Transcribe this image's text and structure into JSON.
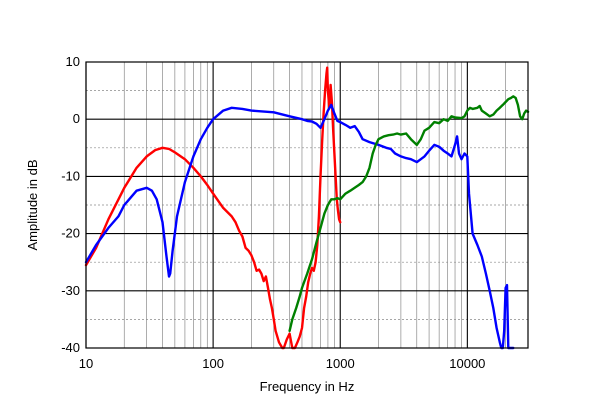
{
  "chart_data": {
    "type": "line",
    "title": "",
    "xlabel": "Frequency  in  Hz",
    "ylabel": "Amplitude  in  dB",
    "xscale": "log",
    "xlim": [
      10,
      30000
    ],
    "ylim": [
      -40,
      10
    ],
    "x_tick_labels": [
      "10",
      "100",
      "1000",
      "10000"
    ],
    "x_tick_values": [
      10,
      100,
      1000,
      10000
    ],
    "y_tick_labels": [
      "10",
      "0",
      "-10",
      "-20",
      "-30",
      "-40"
    ],
    "y_tick_values": [
      10,
      0,
      -10,
      -20,
      -30,
      -40
    ],
    "grid": true,
    "legend": "none",
    "series": [
      {
        "color": "#ff0000",
        "points": [
          [
            10,
            -25.5
          ],
          [
            12,
            -22.5
          ],
          [
            15,
            -17.5
          ],
          [
            20,
            -12
          ],
          [
            25,
            -8.5
          ],
          [
            30,
            -6.5
          ],
          [
            35,
            -5.4
          ],
          [
            40,
            -5
          ],
          [
            45,
            -5.2
          ],
          [
            50,
            -5.8
          ],
          [
            60,
            -7
          ],
          [
            70,
            -8.5
          ],
          [
            80,
            -10
          ],
          [
            90,
            -11.5
          ],
          [
            100,
            -13
          ],
          [
            120,
            -15.5
          ],
          [
            140,
            -17
          ],
          [
            150,
            -18
          ],
          [
            160,
            -19.5
          ],
          [
            170,
            -20.5
          ],
          [
            180,
            -22.5
          ],
          [
            190,
            -23
          ],
          [
            200,
            -23.8
          ],
          [
            210,
            -25
          ],
          [
            220,
            -26.5
          ],
          [
            230,
            -26.3
          ],
          [
            240,
            -27
          ],
          [
            250,
            -28.3
          ],
          [
            260,
            -27.5
          ],
          [
            270,
            -29.5
          ],
          [
            280,
            -31.5
          ],
          [
            290,
            -33
          ],
          [
            300,
            -35
          ],
          [
            310,
            -37
          ],
          [
            330,
            -39
          ],
          [
            350,
            -40
          ],
          [
            360,
            -40
          ],
          [
            380,
            -38.5
          ],
          [
            400,
            -37.5
          ],
          [
            420,
            -40
          ],
          [
            440,
            -40
          ],
          [
            460,
            -39
          ],
          [
            480,
            -38
          ],
          [
            500,
            -36.5
          ],
          [
            520,
            -33
          ],
          [
            540,
            -31
          ],
          [
            560,
            -28.5
          ],
          [
            580,
            -27
          ],
          [
            600,
            -26
          ],
          [
            620,
            -26.5
          ],
          [
            640,
            -25
          ],
          [
            660,
            -22
          ],
          [
            680,
            -17
          ],
          [
            700,
            -10
          ],
          [
            720,
            -4
          ],
          [
            740,
            1
          ],
          [
            760,
            5
          ],
          [
            780,
            8
          ],
          [
            790,
            9
          ],
          [
            800,
            5
          ],
          [
            820,
            2
          ],
          [
            840,
            6
          ],
          [
            860,
            3
          ],
          [
            880,
            -2
          ],
          [
            900,
            -6
          ],
          [
            920,
            -10
          ],
          [
            940,
            -14
          ],
          [
            960,
            -16
          ],
          [
            980,
            -17.5
          ],
          [
            1000,
            -18
          ]
        ]
      },
      {
        "color": "#0000ff",
        "points": [
          [
            10,
            -25
          ],
          [
            12,
            -22
          ],
          [
            15,
            -19
          ],
          [
            18,
            -17
          ],
          [
            20,
            -15
          ],
          [
            25,
            -12.5
          ],
          [
            30,
            -12
          ],
          [
            33,
            -12.5
          ],
          [
            36,
            -14
          ],
          [
            40,
            -18
          ],
          [
            43,
            -24
          ],
          [
            45,
            -27.5
          ],
          [
            46,
            -27
          ],
          [
            48,
            -23
          ],
          [
            52,
            -17
          ],
          [
            60,
            -11
          ],
          [
            70,
            -6.5
          ],
          [
            80,
            -3.5
          ],
          [
            90,
            -1.5
          ],
          [
            100,
            0
          ],
          [
            120,
            1.5
          ],
          [
            140,
            2
          ],
          [
            170,
            1.8
          ],
          [
            200,
            1.5
          ],
          [
            300,
            1.2
          ],
          [
            400,
            0.5
          ],
          [
            500,
            0
          ],
          [
            550,
            -0.3
          ],
          [
            600,
            -0.4
          ],
          [
            650,
            -0.8
          ],
          [
            700,
            -1.5
          ],
          [
            750,
            0
          ],
          [
            800,
            1.5
          ],
          [
            850,
            2.5
          ],
          [
            900,
            1
          ],
          [
            950,
            -0.3
          ],
          [
            1000,
            -0.5
          ],
          [
            1100,
            -1
          ],
          [
            1200,
            -1.5
          ],
          [
            1300,
            -1.2
          ],
          [
            1400,
            -2.2
          ],
          [
            1500,
            -3.5
          ],
          [
            1700,
            -4
          ],
          [
            2000,
            -4.5
          ],
          [
            2300,
            -5
          ],
          [
            2500,
            -5.2
          ],
          [
            2700,
            -6
          ],
          [
            3000,
            -6.5
          ],
          [
            3300,
            -6.8
          ],
          [
            3600,
            -7
          ],
          [
            4000,
            -7.5
          ],
          [
            4300,
            -7
          ],
          [
            4600,
            -6.5
          ],
          [
            5000,
            -5.5
          ],
          [
            5500,
            -4.5
          ],
          [
            6000,
            -4.8
          ],
          [
            6500,
            -5.5
          ],
          [
            7000,
            -6
          ],
          [
            7500,
            -6.5
          ],
          [
            8000,
            -4.5
          ],
          [
            8300,
            -3
          ],
          [
            8600,
            -6
          ],
          [
            9000,
            -7
          ],
          [
            9500,
            -6
          ],
          [
            10000,
            -6.5
          ],
          [
            10300,
            -13
          ],
          [
            11000,
            -20
          ],
          [
            12000,
            -22
          ],
          [
            13000,
            -24
          ],
          [
            14000,
            -27
          ],
          [
            15000,
            -30
          ],
          [
            16000,
            -33
          ],
          [
            17000,
            -36.5
          ],
          [
            18000,
            -39
          ],
          [
            18500,
            -40
          ],
          [
            19000,
            -40
          ],
          [
            19500,
            -37
          ],
          [
            20000,
            -29.5
          ],
          [
            20500,
            -29
          ],
          [
            21000,
            -40
          ],
          [
            23000,
            -40
          ]
        ]
      },
      {
        "color": "#008000",
        "points": [
          [
            400,
            -37
          ],
          [
            420,
            -35
          ],
          [
            450,
            -33
          ],
          [
            480,
            -31
          ],
          [
            500,
            -29.5
          ],
          [
            550,
            -27
          ],
          [
            600,
            -24.5
          ],
          [
            650,
            -21.5
          ],
          [
            700,
            -19
          ],
          [
            750,
            -16.5
          ],
          [
            800,
            -15
          ],
          [
            850,
            -14
          ],
          [
            900,
            -14
          ],
          [
            950,
            -13.8
          ],
          [
            1000,
            -14
          ],
          [
            1100,
            -13
          ],
          [
            1200,
            -12.5
          ],
          [
            1300,
            -12
          ],
          [
            1400,
            -11.5
          ],
          [
            1500,
            -11
          ],
          [
            1600,
            -10
          ],
          [
            1700,
            -8.5
          ],
          [
            1800,
            -6
          ],
          [
            1900,
            -4.5
          ],
          [
            2000,
            -3.5
          ],
          [
            2200,
            -3
          ],
          [
            2400,
            -2.8
          ],
          [
            2600,
            -2.7
          ],
          [
            2800,
            -2.5
          ],
          [
            3000,
            -2.7
          ],
          [
            3300,
            -2.5
          ],
          [
            3600,
            -3.5
          ],
          [
            3800,
            -4
          ],
          [
            4000,
            -4.5
          ],
          [
            4300,
            -3.5
          ],
          [
            4600,
            -2
          ],
          [
            5000,
            -1.5
          ],
          [
            5500,
            -0.5
          ],
          [
            6000,
            -0.7
          ],
          [
            6500,
            0
          ],
          [
            7000,
            -0.3
          ],
          [
            7500,
            0.5
          ],
          [
            8000,
            0.3
          ],
          [
            9000,
            0.2
          ],
          [
            9500,
            0.5
          ],
          [
            10000,
            1.5
          ],
          [
            10500,
            2
          ],
          [
            11000,
            1.8
          ],
          [
            12000,
            2
          ],
          [
            12500,
            2.3
          ],
          [
            13000,
            1.5
          ],
          [
            14000,
            1
          ],
          [
            15000,
            0.5
          ],
          [
            16000,
            0.8
          ],
          [
            17000,
            1.5
          ],
          [
            18000,
            2
          ],
          [
            19000,
            2.5
          ],
          [
            20000,
            3
          ],
          [
            21000,
            3.5
          ],
          [
            22000,
            3.7
          ],
          [
            23000,
            4
          ],
          [
            24000,
            3.7
          ],
          [
            25000,
            2.5
          ],
          [
            26000,
            0.5
          ],
          [
            27000,
            0
          ],
          [
            28000,
            1
          ],
          [
            29000,
            1.5
          ],
          [
            30000,
            1.3
          ]
        ]
      }
    ]
  }
}
